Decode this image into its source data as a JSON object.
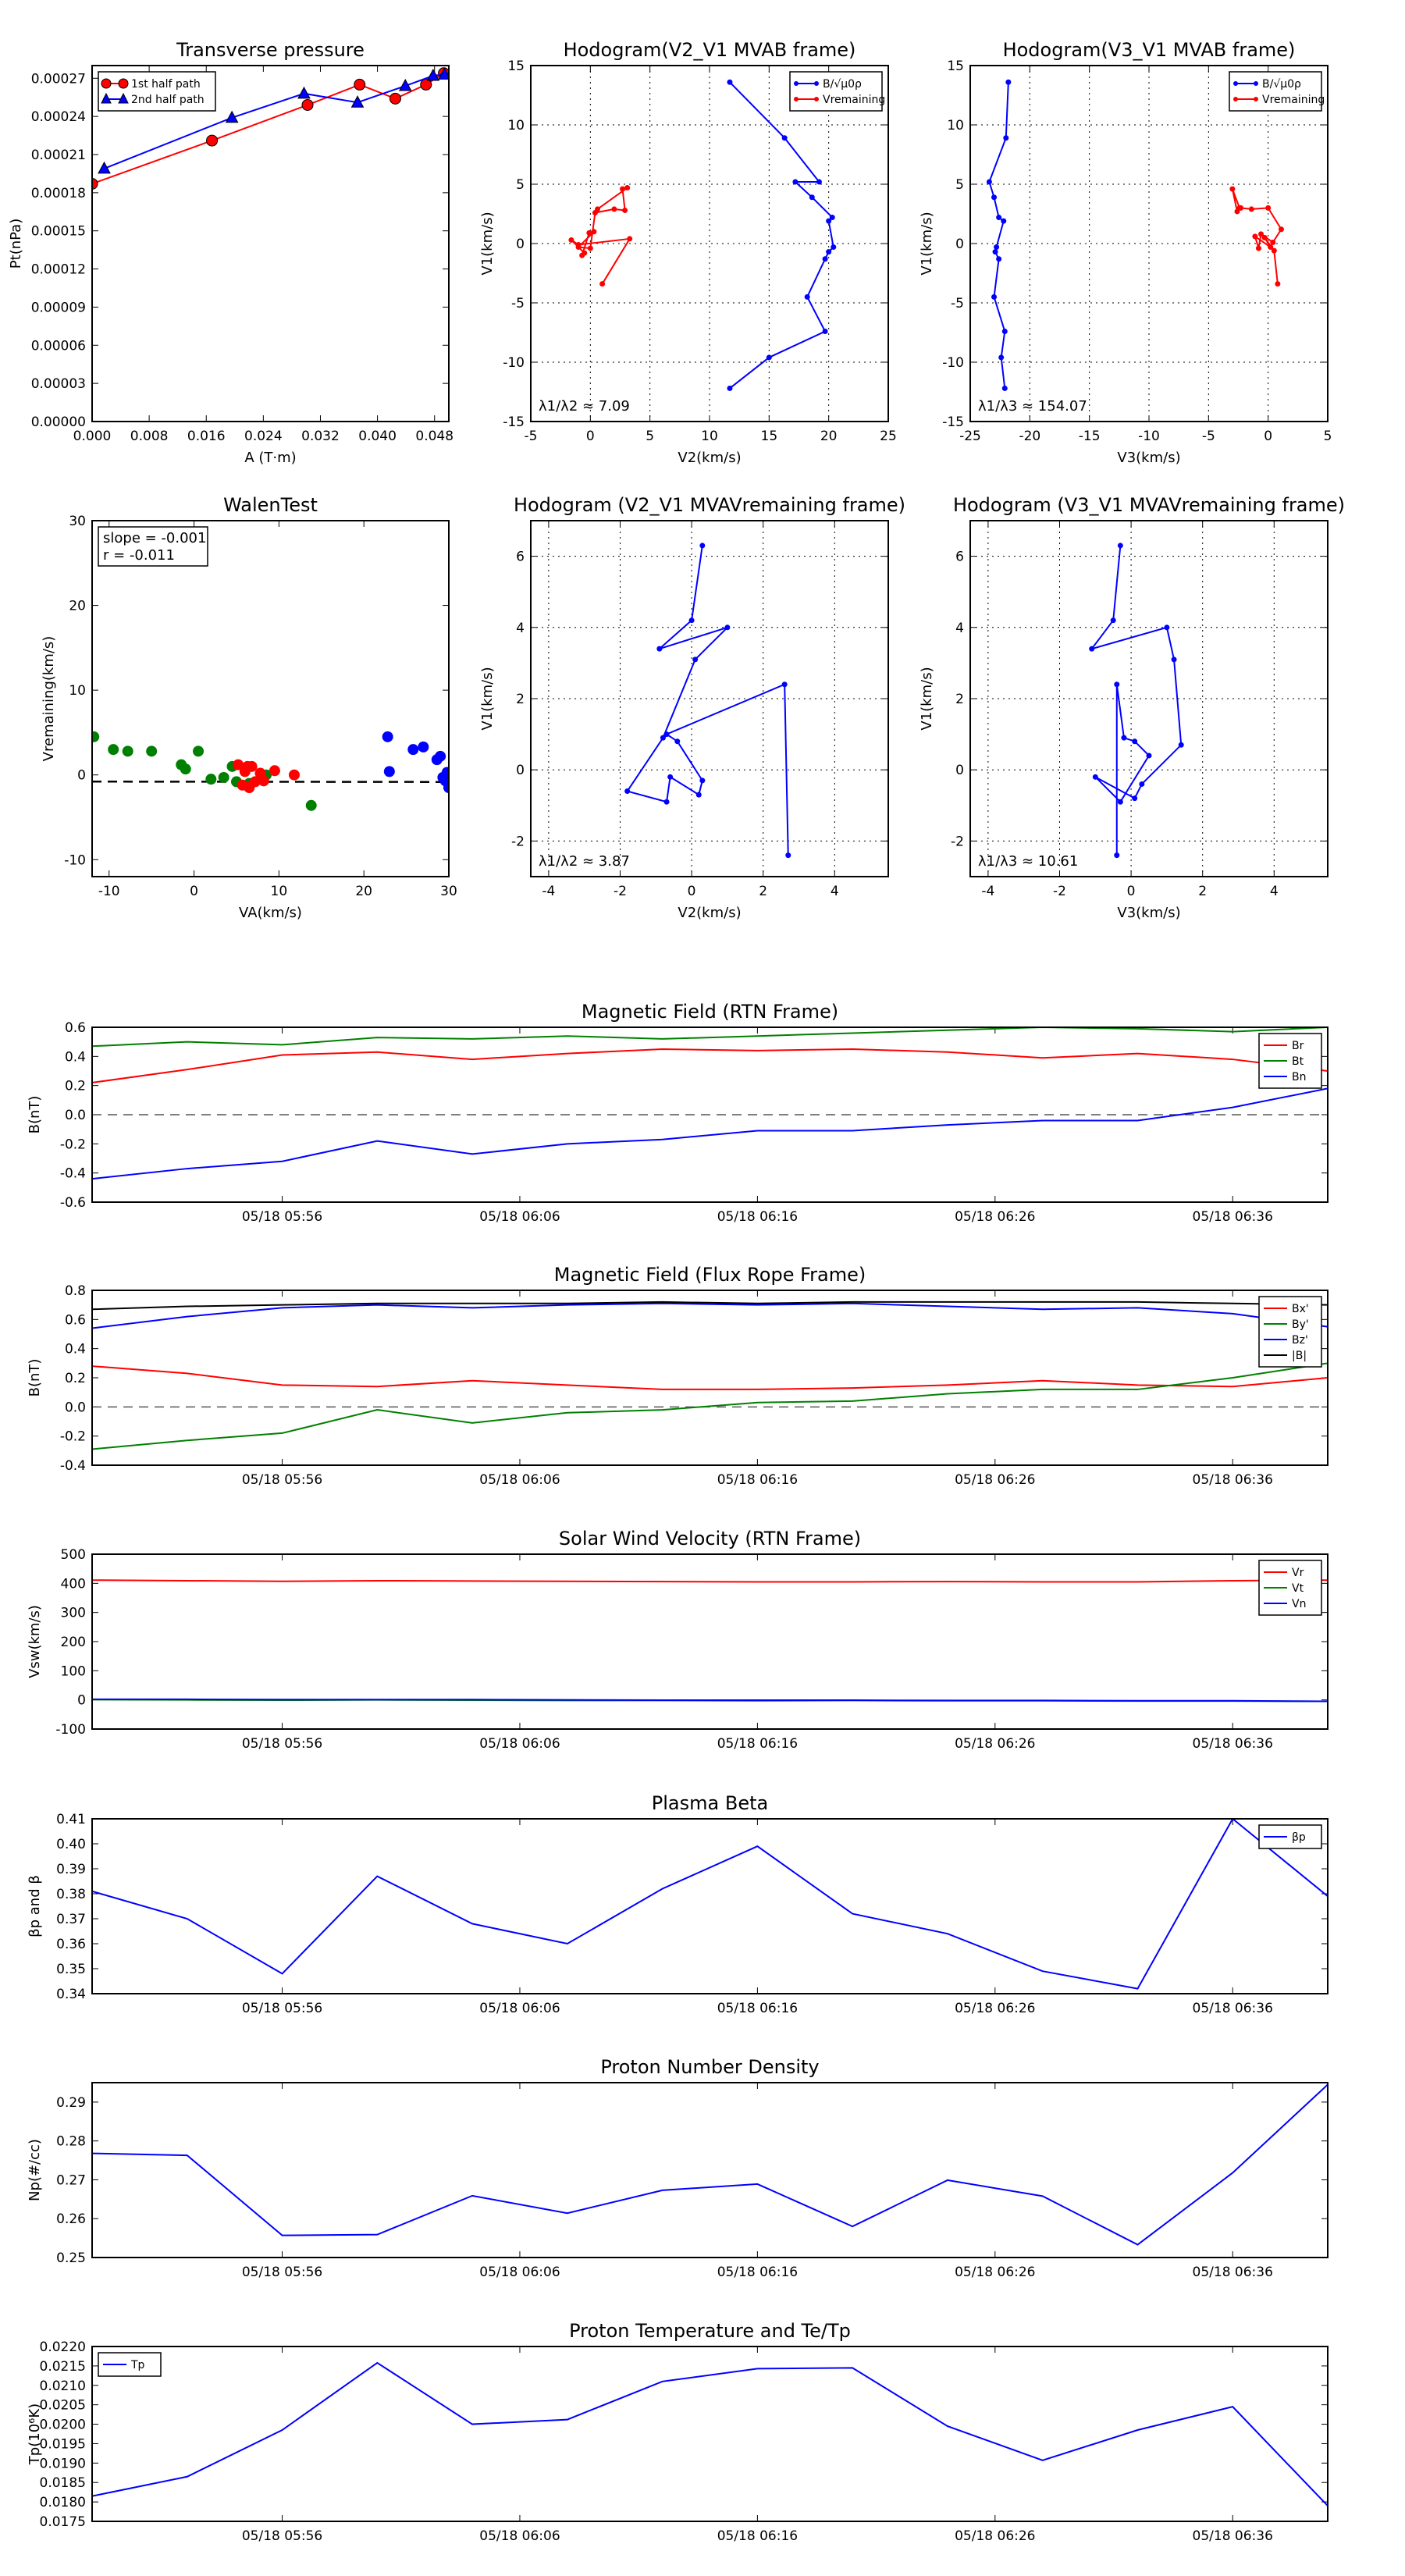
{
  "time_ticks": [
    "05/18 05:56",
    "05/18 06:06",
    "05/18 06:16",
    "05/18 06:26",
    "05/18 06:36"
  ],
  "chart_data": [
    {
      "id": "transverse-pressure",
      "type": "line",
      "title": "Transverse pressure",
      "xlabel": "A (T·m)",
      "ylabel": "Pt(nPa)",
      "xlim": [
        0.0,
        0.05
      ],
      "ylim": [
        0.0,
        0.00028
      ],
      "xticks": [
        0.0,
        0.008,
        0.016,
        0.024,
        0.032,
        0.04,
        0.048
      ],
      "xtick_labels": [
        "0.000",
        "0.008",
        "0.016",
        "0.024",
        "0.032",
        "0.040",
        "0.048"
      ],
      "yticks": [
        0,
        3e-05,
        6e-05,
        9e-05,
        0.00012,
        0.00015,
        0.00018,
        0.00021,
        0.00024,
        0.00027
      ],
      "ytick_labels": [
        "0.00000",
        "0.00003",
        "0.00006",
        "0.00009",
        "0.00012",
        "0.00015",
        "0.00018",
        "0.00021",
        "0.00024",
        "0.00027"
      ],
      "grid": false,
      "legend": "top-left",
      "series": [
        {
          "name": "1st half path",
          "color": "#ff0000",
          "marker": "circle",
          "x": [
            0.0,
            0.0168,
            0.0302,
            0.0375,
            0.0425,
            0.0468,
            0.0493
          ],
          "y": [
            0.000187,
            0.000221,
            0.000249,
            0.000265,
            0.000254,
            0.000265,
            0.000274
          ]
        },
        {
          "name": "2nd half path",
          "color": "#0000ff",
          "marker": "triangle",
          "x": [
            0.0017,
            0.0196,
            0.0297,
            0.0372,
            0.0439,
            0.0478,
            0.0494
          ],
          "y": [
            0.000199,
            0.000239,
            0.000258,
            0.000251,
            0.000264,
            0.000272,
            0.000273
          ]
        }
      ]
    },
    {
      "id": "hodogram-v2-mvab",
      "type": "line",
      "title": "Hodogram(V2_V1 MVAB frame)",
      "xlabel": "V2(km/s)",
      "ylabel": "V1(km/s)",
      "xlim": [
        -5,
        25
      ],
      "ylim": [
        -15,
        15
      ],
      "xticks": [
        -5,
        0,
        5,
        10,
        15,
        20,
        25
      ],
      "yticks": [
        -15,
        -10,
        -5,
        0,
        5,
        10,
        15
      ],
      "grid": true,
      "legend": "top-right",
      "annotation": "λ1/λ2 ≈ 7.09",
      "series": [
        {
          "name": "B/√μ0ρ",
          "color": "#0000ff",
          "x": [
            11.7,
            15,
            19.7,
            18.2,
            19.7,
            20,
            20.4,
            20,
            20.3,
            18.6,
            17.2,
            19.2,
            16.3,
            11.7
          ],
          "y": [
            -12.2,
            -9.6,
            -7.4,
            -4.5,
            -1.3,
            -0.7,
            -0.3,
            1.9,
            2.2,
            3.9,
            5.2,
            5.2,
            8.9,
            13.6
          ]
        },
        {
          "name": "Vremaining",
          "color": "#ff0000",
          "x": [
            1.0,
            3.3,
            -1.0,
            -1.6,
            -0.5,
            -0.7,
            -0.1,
            0.3,
            -1.0,
            0.0,
            0.4,
            2.0,
            2.9,
            2.7,
            3.1,
            0.6
          ],
          "y": [
            -3.4,
            0.4,
            -0.1,
            0.3,
            -0.8,
            -1.0,
            0.9,
            1.0,
            -0.3,
            -0.4,
            2.6,
            2.9,
            2.8,
            4.6,
            4.7,
            2.9
          ]
        }
      ]
    },
    {
      "id": "hodogram-v3-mvab",
      "type": "line",
      "title": "Hodogram(V3_V1 MVAB frame)",
      "xlabel": "V3(km/s)",
      "ylabel": "V1(km/s)",
      "xlim": [
        -25,
        5
      ],
      "ylim": [
        -15,
        15
      ],
      "xticks": [
        -25,
        -20,
        -15,
        -10,
        -5,
        0,
        5
      ],
      "yticks": [
        -15,
        -10,
        -5,
        0,
        5,
        10,
        15
      ],
      "grid": true,
      "legend": "top-right",
      "annotation": "λ1/λ3 ≈ 154.07",
      "series": [
        {
          "name": "B/√μ0ρ",
          "color": "#0000ff",
          "x": [
            -22.1,
            -22.4,
            -22.1,
            -23.0,
            -22.6,
            -22.9,
            -22.8,
            -22.2,
            -22.6,
            -23.0,
            -23.4,
            -22.0,
            -21.8
          ],
          "y": [
            -12.2,
            -9.6,
            -7.4,
            -4.5,
            -1.3,
            -0.7,
            -0.3,
            1.9,
            2.2,
            3.9,
            5.2,
            8.9,
            13.6
          ]
        },
        {
          "name": "Vremaining",
          "color": "#ff0000",
          "x": [
            0.8,
            0.5,
            -0.3,
            0.2,
            -1.1,
            -0.8,
            -0.6,
            0.4,
            1.1,
            0.0,
            -1.4,
            -2.3,
            -2.6,
            -3.0,
            -2.4
          ],
          "y": [
            -3.4,
            -0.6,
            0.5,
            -0.3,
            0.6,
            -0.4,
            0.8,
            0.1,
            1.2,
            3.0,
            2.9,
            3.0,
            2.7,
            4.6,
            3.0
          ]
        }
      ]
    },
    {
      "id": "walen-test",
      "type": "scatter",
      "title": "WalenTest",
      "xlabel": "VA(km/s)",
      "ylabel": "Vremaining(km/s)",
      "xlim": [
        -12,
        30
      ],
      "ylim": [
        -12,
        30
      ],
      "xticks": [
        -10,
        0,
        10,
        20,
        30
      ],
      "yticks": [
        -10,
        0,
        10,
        20,
        30
      ],
      "grid": false,
      "annotation": [
        "slope = -0.001",
        "r = -0.011"
      ],
      "fit_line": {
        "slope": -0.001,
        "intercept": -0.8
      },
      "series": [
        {
          "color": "#008000",
          "x": [
            -11.8,
            -9.5,
            -7.8,
            -5,
            -1.5,
            -1,
            0.5,
            2,
            3.5,
            4.5,
            5,
            6.5,
            8.5,
            13.8
          ],
          "y": [
            4.5,
            3,
            2.8,
            2.8,
            1.2,
            0.7,
            2.8,
            -0.5,
            -0.3,
            1.0,
            -0.8,
            -1.0,
            0.0,
            -3.6
          ]
        },
        {
          "color": "#ff0000",
          "x": [
            5.2,
            5.7,
            6.0,
            6.3,
            6.5,
            6.8,
            7.2,
            7.8,
            8.2,
            9.5,
            11.8
          ],
          "y": [
            1.2,
            -1.2,
            0.4,
            1.0,
            -1.5,
            1.0,
            -0.8,
            0.2,
            -0.7,
            0.5,
            0.0
          ]
        },
        {
          "color": "#0000ff",
          "x": [
            22.8,
            23.0,
            25.8,
            27.0,
            28.6,
            29.0,
            29.3,
            29.6,
            29.8,
            30.0
          ],
          "y": [
            4.5,
            0.4,
            3.0,
            3.3,
            1.8,
            2.2,
            -0.3,
            -0.7,
            0.3,
            -1.5
          ]
        }
      ]
    },
    {
      "id": "hodogram-v2-mvav",
      "type": "line",
      "title": "Hodogram (V2_V1 MVAVremaining frame)",
      "xlabel": "V2(km/s)",
      "ylabel": "V1(km/s)",
      "xlim": [
        -4.5,
        5.5
      ],
      "ylim": [
        -3,
        7
      ],
      "xticks": [
        -4,
        -2,
        0,
        2,
        4
      ],
      "yticks": [
        -2,
        0,
        2,
        4,
        6
      ],
      "grid": true,
      "annotation": "λ1/λ2 ≈ 3.87",
      "series": [
        {
          "color": "#0000ff",
          "x": [
            2.7,
            2.6,
            -0.7,
            -0.4,
            0.3,
            0.2,
            -0.6,
            -0.7,
            -1.8,
            -0.8,
            0.1,
            1.0,
            -0.9,
            0.0,
            0.3
          ],
          "y": [
            -2.4,
            2.4,
            1.0,
            0.8,
            -0.3,
            -0.7,
            -0.2,
            -0.9,
            -0.6,
            0.9,
            3.1,
            4.0,
            3.4,
            4.2,
            6.3
          ]
        }
      ]
    },
    {
      "id": "hodogram-v3-mvav",
      "type": "line",
      "title": "Hodogram (V3_V1 MVAVremaining frame)",
      "xlabel": "V3(km/s)",
      "ylabel": "V1(km/s)",
      "xlim": [
        -4.5,
        5.5
      ],
      "ylim": [
        -3,
        7
      ],
      "xticks": [
        -4,
        -2,
        0,
        2,
        4
      ],
      "yticks": [
        -2,
        0,
        2,
        4,
        6
      ],
      "grid": true,
      "annotation": "λ1/λ3 ≈ 10.61",
      "series": [
        {
          "color": "#0000ff",
          "x": [
            -0.4,
            -0.4,
            -0.2,
            0.1,
            0.5,
            -0.3,
            -1.0,
            0.1,
            0.3,
            1.4,
            1.2,
            1.0,
            -1.1,
            -0.5,
            -0.3
          ],
          "y": [
            -2.4,
            2.4,
            0.9,
            0.8,
            0.4,
            -0.9,
            -0.2,
            -0.8,
            -0.4,
            0.7,
            3.1,
            4.0,
            3.4,
            4.2,
            6.3
          ]
        }
      ]
    },
    {
      "id": "mag-rtn",
      "type": "line",
      "title": "Magnetic Field (RTN Frame)",
      "ylabel": "B(nT)",
      "xlim": [
        0,
        13
      ],
      "ylim": [
        -0.6,
        0.6
      ],
      "time_tick_positions": [
        2,
        4.5,
        7,
        9.5,
        12
      ],
      "yticks": [
        -0.6,
        -0.4,
        -0.2,
        0.0,
        0.2,
        0.4,
        0.6
      ],
      "ytick_labels": [
        "-0.6",
        "-0.4",
        "-0.2",
        "0.0",
        "0.2",
        "0.4",
        "0.6"
      ],
      "zero_line": true,
      "legend": "top-right",
      "series": [
        {
          "name": "Br",
          "color": "#ff0000",
          "values": [
            0.22,
            0.31,
            0.41,
            0.43,
            0.38,
            0.42,
            0.45,
            0.44,
            0.45,
            0.43,
            0.39,
            0.42,
            0.38,
            0.3
          ]
        },
        {
          "name": "Bt",
          "color": "#008000",
          "values": [
            0.47,
            0.5,
            0.48,
            0.53,
            0.52,
            0.54,
            0.52,
            0.54,
            0.56,
            0.58,
            0.6,
            0.59,
            0.57,
            0.6
          ]
        },
        {
          "name": "Bn",
          "color": "#0000ff",
          "values": [
            -0.44,
            -0.37,
            -0.32,
            -0.18,
            -0.27,
            -0.2,
            -0.17,
            -0.11,
            -0.11,
            -0.07,
            -0.04,
            -0.04,
            0.05,
            0.18
          ]
        }
      ]
    },
    {
      "id": "mag-fluxrope",
      "type": "line",
      "title": "Magnetic Field (Flux Rope Frame)",
      "ylabel": "B(nT)",
      "xlim": [
        0,
        13
      ],
      "ylim": [
        -0.4,
        0.8
      ],
      "time_tick_positions": [
        2,
        4.5,
        7,
        9.5,
        12
      ],
      "yticks": [
        -0.4,
        -0.2,
        0.0,
        0.2,
        0.4,
        0.6,
        0.8
      ],
      "ytick_labels": [
        "-0.4",
        "-0.2",
        "0.0",
        "0.2",
        "0.4",
        "0.6",
        "0.8"
      ],
      "zero_line": true,
      "legend": "top-right",
      "series": [
        {
          "name": "Bx'",
          "color": "#ff0000",
          "values": [
            0.28,
            0.23,
            0.15,
            0.14,
            0.18,
            0.15,
            0.12,
            0.12,
            0.13,
            0.15,
            0.18,
            0.15,
            0.14,
            0.2
          ]
        },
        {
          "name": "By'",
          "color": "#008000",
          "values": [
            -0.29,
            -0.23,
            -0.18,
            -0.02,
            -0.11,
            -0.04,
            -0.02,
            0.03,
            0.04,
            0.09,
            0.12,
            0.12,
            0.2,
            0.3
          ]
        },
        {
          "name": "Bz'",
          "color": "#0000ff",
          "values": [
            0.54,
            0.62,
            0.68,
            0.7,
            0.68,
            0.7,
            0.71,
            0.7,
            0.71,
            0.69,
            0.67,
            0.68,
            0.64,
            0.55
          ]
        },
        {
          "name": "|B|",
          "color": "#000000",
          "values": [
            0.67,
            0.69,
            0.7,
            0.71,
            0.71,
            0.71,
            0.72,
            0.71,
            0.72,
            0.72,
            0.72,
            0.72,
            0.71,
            0.7
          ]
        }
      ]
    },
    {
      "id": "solar-wind",
      "type": "line",
      "title": "Solar Wind Velocity (RTN Frame)",
      "ylabel": "Vsw(km/s)",
      "xlim": [
        0,
        13
      ],
      "ylim": [
        -100,
        500
      ],
      "time_tick_positions": [
        2,
        4.5,
        7,
        9.5,
        12
      ],
      "yticks": [
        -100,
        0,
        100,
        200,
        300,
        400,
        500
      ],
      "ytick_labels": [
        "-100",
        "0",
        "100",
        "200",
        "300",
        "400",
        "500"
      ],
      "legend": "top-right",
      "series": [
        {
          "name": "Vr",
          "color": "#ff0000",
          "values": [
            411,
            409,
            407,
            409,
            408,
            407,
            406,
            405,
            405,
            406,
            405,
            405,
            409,
            411
          ]
        },
        {
          "name": "Vt",
          "color": "#008000",
          "values": [
            1,
            0,
            -1,
            0,
            -1,
            -2,
            -2,
            -3,
            -2,
            -3,
            -3,
            -4,
            -4,
            -5
          ]
        },
        {
          "name": "Vn",
          "color": "#0000ff",
          "values": [
            2,
            2,
            1,
            1,
            1,
            0,
            -1,
            -1,
            -1,
            -2,
            -2,
            -3,
            -3,
            -5
          ]
        }
      ]
    },
    {
      "id": "plasma-beta",
      "type": "line",
      "title": "Plasma Beta",
      "ylabel": "βp and β",
      "xlim": [
        0,
        13
      ],
      "ylim": [
        0.34,
        0.41
      ],
      "time_tick_positions": [
        2,
        4.5,
        7,
        9.5,
        12
      ],
      "yticks": [
        0.34,
        0.35,
        0.36,
        0.37,
        0.38,
        0.39,
        0.4,
        0.41
      ],
      "ytick_labels": [
        "0.34",
        "0.35",
        "0.36",
        "0.37",
        "0.38",
        "0.39",
        "0.40",
        "0.41"
      ],
      "legend": "top-right",
      "series": [
        {
          "name": "βp",
          "color": "#0000ff",
          "values": [
            0.381,
            0.37,
            0.348,
            0.387,
            0.368,
            0.36,
            0.382,
            0.399,
            0.372,
            0.364,
            0.349,
            0.342,
            0.41,
            0.379
          ]
        }
      ]
    },
    {
      "id": "proton-density",
      "type": "line",
      "title": "Proton Number Density",
      "ylabel": "Np(#/cc)",
      "xlim": [
        0,
        13
      ],
      "ylim": [
        0.25,
        0.295
      ],
      "time_tick_positions": [
        2,
        4.5,
        7,
        9.5,
        12
      ],
      "yticks": [
        0.25,
        0.26,
        0.27,
        0.28,
        0.29
      ],
      "ytick_labels": [
        "0.25",
        "0.26",
        "0.27",
        "0.28",
        "0.29"
      ],
      "series": [
        {
          "color": "#0000ff",
          "values": [
            0.2768,
            0.2763,
            0.2557,
            0.2559,
            0.2659,
            0.2614,
            0.2673,
            0.2689,
            0.258,
            0.2699,
            0.2658,
            0.2533,
            0.2718,
            0.2945
          ]
        }
      ]
    },
    {
      "id": "proton-temp",
      "type": "line",
      "title": "Proton Temperature and Te/Tp",
      "ylabel": "Tp(10⁶K)",
      "xlim": [
        0,
        13
      ],
      "ylim": [
        0.0175,
        0.022
      ],
      "time_tick_positions": [
        2,
        4.5,
        7,
        9.5,
        12
      ],
      "yticks": [
        0.0175,
        0.018,
        0.0185,
        0.019,
        0.0195,
        0.02,
        0.0205,
        0.021,
        0.0215,
        0.022
      ],
      "ytick_labels": [
        "0.0175",
        "0.0180",
        "0.0185",
        "0.0190",
        "0.0195",
        "0.0200",
        "0.0205",
        "0.0210",
        "0.0215",
        "0.0220"
      ],
      "legend": "top-left",
      "series": [
        {
          "name": "Tp",
          "color": "#0000ff",
          "values": [
            0.01815,
            0.01865,
            0.01985,
            0.02158,
            0.02,
            0.02012,
            0.0211,
            0.02143,
            0.02145,
            0.01995,
            0.01907,
            0.01985,
            0.02045,
            0.0179
          ]
        }
      ]
    }
  ]
}
